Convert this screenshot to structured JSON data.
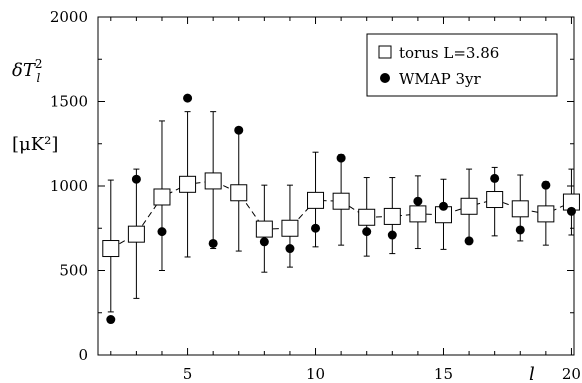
{
  "chart_data": {
    "type": "scatter",
    "ylabel": "δT_l^2",
    "ylabel_units": "[μK²]",
    "xlabel": "l",
    "xlim": [
      1.5,
      20.1
    ],
    "ylim": [
      0,
      2000
    ],
    "x_ticks": [
      5,
      10,
      15,
      20
    ],
    "y_ticks": [
      0,
      500,
      1000,
      1500,
      2000
    ],
    "legend_position": "top-right",
    "series": [
      {
        "name": "torus L=3.86",
        "marker": "open-square",
        "line": "dashed",
        "points": [
          {
            "x": 2,
            "y": 630,
            "lo": 255,
            "hi": 1035
          },
          {
            "x": 3,
            "y": 715,
            "lo": 335,
            "hi": 1100
          },
          {
            "x": 4,
            "y": 935,
            "lo": 500,
            "hi": 1385
          },
          {
            "x": 5,
            "y": 1010,
            "lo": 580,
            "hi": 1440
          },
          {
            "x": 6,
            "y": 1030,
            "lo": 630,
            "hi": 1440
          },
          {
            "x": 7,
            "y": 960,
            "lo": 615,
            "hi": 1345
          },
          {
            "x": 8,
            "y": 745,
            "lo": 490,
            "hi": 1005
          },
          {
            "x": 9,
            "y": 750,
            "lo": 520,
            "hi": 1005
          },
          {
            "x": 10,
            "y": 915,
            "lo": 640,
            "hi": 1200
          },
          {
            "x": 11,
            "y": 910,
            "lo": 650,
            "hi": 1185
          },
          {
            "x": 12,
            "y": 815,
            "lo": 585,
            "hi": 1050
          },
          {
            "x": 13,
            "y": 820,
            "lo": 600,
            "hi": 1050
          },
          {
            "x": 14,
            "y": 835,
            "lo": 630,
            "hi": 1060
          },
          {
            "x": 15,
            "y": 830,
            "lo": 625,
            "hi": 1040
          },
          {
            "x": 16,
            "y": 880,
            "lo": 670,
            "hi": 1100
          },
          {
            "x": 17,
            "y": 920,
            "lo": 705,
            "hi": 1110
          },
          {
            "x": 18,
            "y": 865,
            "lo": 675,
            "hi": 1065
          },
          {
            "x": 19,
            "y": 835,
            "lo": 650,
            "hi": 1025
          },
          {
            "x": 20,
            "y": 905,
            "lo": 710,
            "hi": 1100
          }
        ]
      },
      {
        "name": "WMAP 3yr",
        "marker": "filled-circle",
        "points": [
          {
            "x": 2,
            "y": 210
          },
          {
            "x": 3,
            "y": 1040
          },
          {
            "x": 4,
            "y": 730
          },
          {
            "x": 5,
            "y": 1520
          },
          {
            "x": 6,
            "y": 660
          },
          {
            "x": 7,
            "y": 1330
          },
          {
            "x": 8,
            "y": 670
          },
          {
            "x": 9,
            "y": 630
          },
          {
            "x": 10,
            "y": 750
          },
          {
            "x": 11,
            "y": 1165
          },
          {
            "x": 12,
            "y": 730
          },
          {
            "x": 13,
            "y": 710
          },
          {
            "x": 14,
            "y": 910
          },
          {
            "x": 15,
            "y": 880
          },
          {
            "x": 16,
            "y": 675
          },
          {
            "x": 17,
            "y": 1045
          },
          {
            "x": 18,
            "y": 740
          },
          {
            "x": 19,
            "y": 1005
          },
          {
            "x": 20,
            "y": 850
          }
        ]
      }
    ]
  }
}
